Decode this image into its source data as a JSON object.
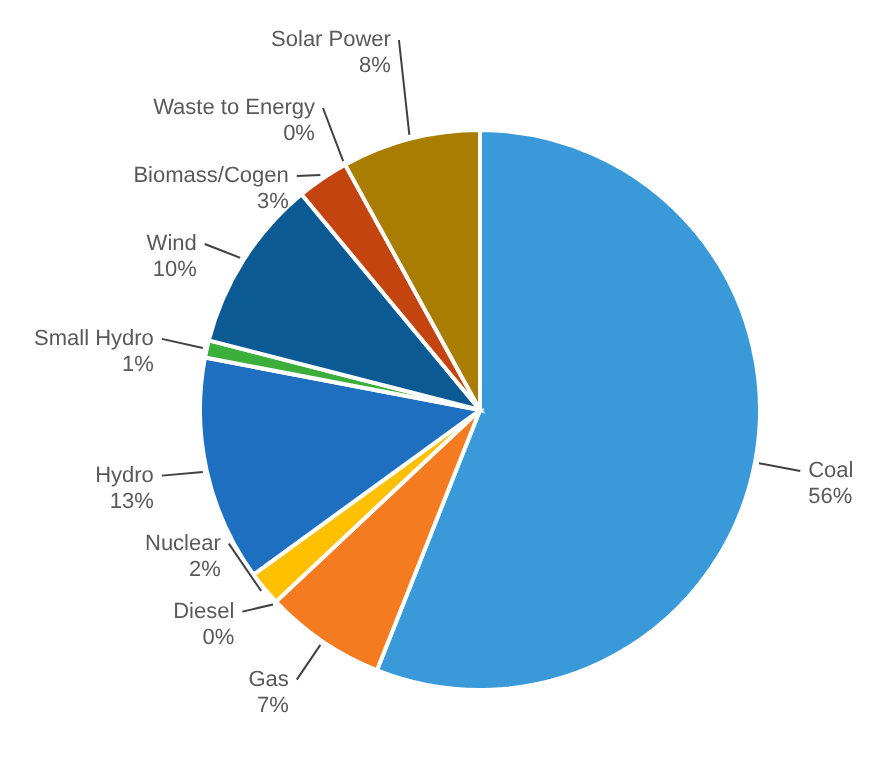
{
  "chart_data": {
    "type": "pie",
    "categories": [
      "Coal",
      "Gas",
      "Diesel",
      "Nuclear",
      "Hydro",
      "Small Hydro",
      "Wind",
      "Biomass/Cogen",
      "Waste to Energy",
      "Solar Power"
    ],
    "values": [
      56,
      7,
      0,
      2,
      13,
      1,
      10,
      3,
      0,
      8
    ],
    "value_labels": [
      "56%",
      "7%",
      "0%",
      "2%",
      "13%",
      "1%",
      "10%",
      "3%",
      "0%",
      "8%"
    ],
    "colors": [
      "#3a9ad9",
      "#f47b20",
      "#a5a5a5",
      "#ffc000",
      "#1f6fc0",
      "#3cae3c",
      "#0b5a93",
      "#c3440e",
      "#7f7f7f",
      "#a87d00"
    ]
  }
}
